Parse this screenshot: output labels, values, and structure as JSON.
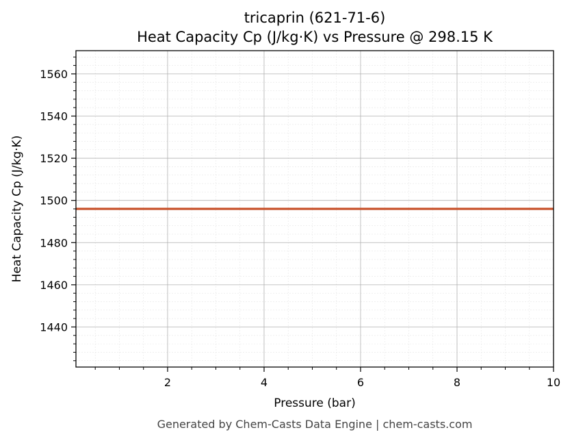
{
  "chart_data": {
    "type": "line",
    "title": "tricaprin (621-71-6)",
    "subtitle": "Heat Capacity Cp (J/kg·K) vs Pressure @ 298.15 K",
    "xlabel": "Pressure (bar)",
    "ylabel": "Heat Capacity Cp (J/kg·K)",
    "xlim": [
      0.1,
      10
    ],
    "ylim": [
      1421,
      1571
    ],
    "x_ticks": [
      2,
      4,
      6,
      8,
      10
    ],
    "y_ticks": [
      1440,
      1460,
      1480,
      1500,
      1520,
      1540,
      1560
    ],
    "grid": true,
    "minor_grid": true,
    "series": [
      {
        "color": "#c8512a",
        "x": [
          0.1,
          1,
          2,
          3,
          4,
          5,
          6,
          7,
          8,
          9,
          10
        ],
        "y": [
          1496,
          1496,
          1496,
          1496,
          1496,
          1496,
          1496,
          1496,
          1496,
          1496,
          1496
        ]
      }
    ]
  },
  "footer": "Generated by Chem-Casts Data Engine | chem-casts.com"
}
